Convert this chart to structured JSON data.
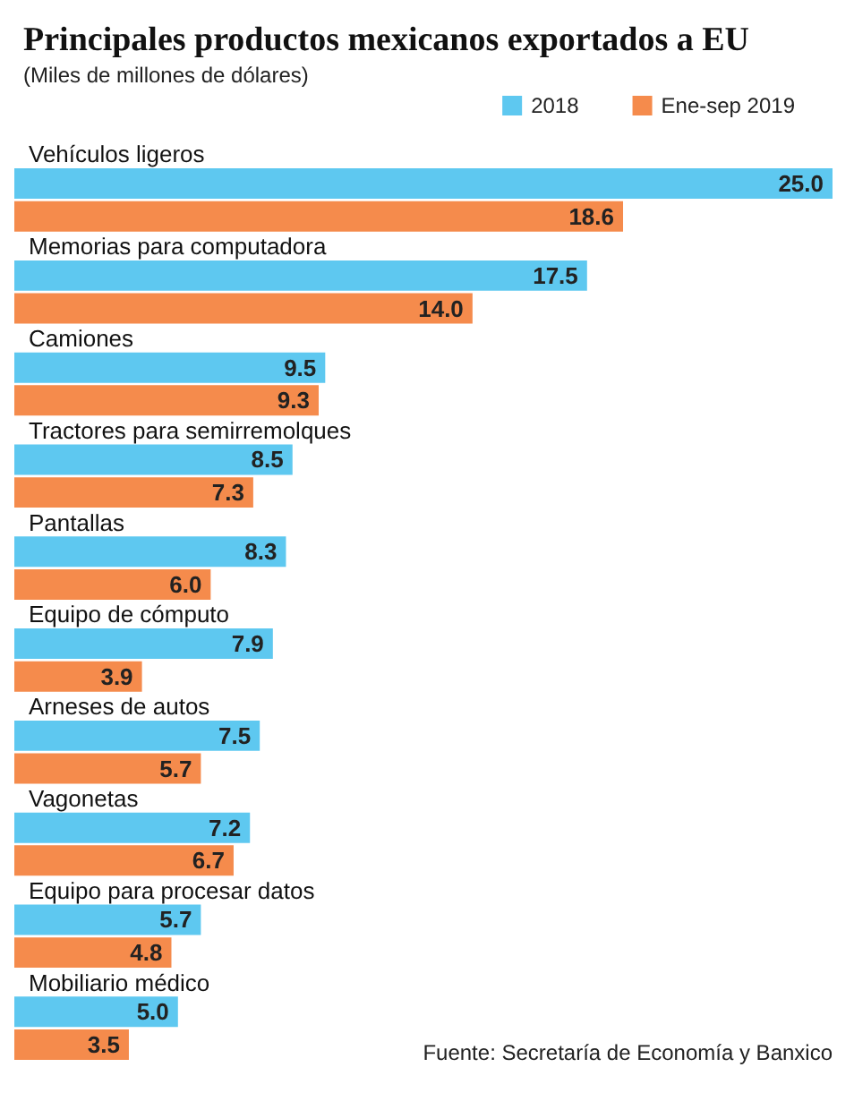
{
  "chart_data": {
    "type": "bar",
    "orientation": "horizontal",
    "title": "Principales productos mexicanos exportados a EU",
    "subtitle": "(Miles de millones de dólares)",
    "categories": [
      "Vehículos ligeros",
      "Memorias para computadora",
      "Camiones",
      "Tractores para semirremolques",
      "Pantallas",
      "Equipo de cómputo",
      "Arneses de autos",
      "Vagonetas",
      "Equipo para procesar datos",
      "Mobiliario médico"
    ],
    "series": [
      {
        "name": "2018",
        "color": "#5ec8f0",
        "values": [
          25.0,
          17.5,
          9.5,
          8.5,
          8.3,
          7.9,
          7.5,
          7.2,
          5.7,
          5.0
        ],
        "value_labels": [
          "25.0",
          "17.5",
          "9.5",
          "8.5",
          "8.3",
          "7.9",
          "7.5",
          "7.2",
          "5.7",
          "5.0"
        ]
      },
      {
        "name": "Ene-sep 2019",
        "color": "#f58b4c",
        "values": [
          18.6,
          14.0,
          9.3,
          7.3,
          6.0,
          3.9,
          5.7,
          6.7,
          4.8,
          3.5
        ],
        "value_labels": [
          "18.6",
          "14.0",
          "9.3",
          "7.3",
          "6.0",
          "3.9",
          "5.7",
          "6.7",
          "4.8",
          "3.5"
        ]
      }
    ],
    "legend": "top right",
    "annotations": [
      "Fuente: Secretaría de Economía y Banxico"
    ]
  }
}
